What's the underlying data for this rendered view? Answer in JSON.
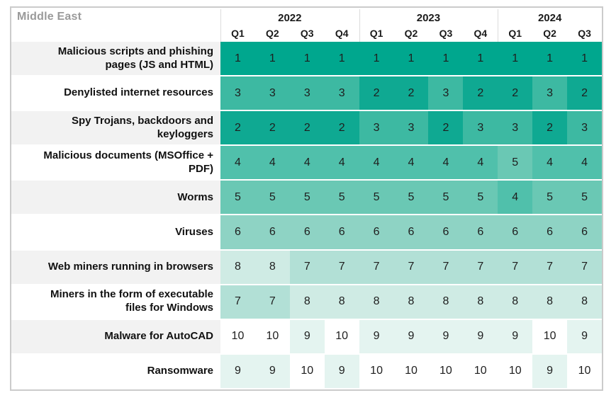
{
  "panel": {
    "title": "Middle East"
  },
  "header": {
    "year_groups": [
      {
        "label": "2022",
        "quarters": [
          "Q1",
          "Q2",
          "Q3",
          "Q4"
        ]
      },
      {
        "label": "2023",
        "quarters": [
          "Q1",
          "Q2",
          "Q3",
          "Q4"
        ]
      },
      {
        "label": "2024",
        "quarters": [
          "Q1",
          "Q2",
          "Q3"
        ]
      }
    ]
  },
  "rows": [
    {
      "label": "Malicious scripts and phishing pages (JS and HTML)",
      "values": [
        1,
        1,
        1,
        1,
        1,
        1,
        1,
        1,
        1,
        1,
        1
      ]
    },
    {
      "label": "Denylisted internet resources",
      "values": [
        3,
        3,
        3,
        3,
        2,
        2,
        3,
        2,
        2,
        3,
        2
      ]
    },
    {
      "label": "Spy Trojans, backdoors and keyloggers",
      "values": [
        2,
        2,
        2,
        2,
        3,
        3,
        2,
        3,
        3,
        2,
        3
      ]
    },
    {
      "label": "Malicious documents (MSOffice + PDF)",
      "values": [
        4,
        4,
        4,
        4,
        4,
        4,
        4,
        4,
        5,
        4,
        4
      ]
    },
    {
      "label": "Worms",
      "values": [
        5,
        5,
        5,
        5,
        5,
        5,
        5,
        5,
        4,
        5,
        5
      ]
    },
    {
      "label": "Viruses",
      "values": [
        6,
        6,
        6,
        6,
        6,
        6,
        6,
        6,
        6,
        6,
        6
      ]
    },
    {
      "label": "Web miners running in browsers",
      "values": [
        8,
        8,
        7,
        7,
        7,
        7,
        7,
        7,
        7,
        7,
        7
      ]
    },
    {
      "label": "Miners in the form of executable files for Windows",
      "values": [
        7,
        7,
        8,
        8,
        8,
        8,
        8,
        8,
        8,
        8,
        8
      ]
    },
    {
      "label": "Malware for AutoCAD",
      "values": [
        10,
        10,
        9,
        10,
        9,
        9,
        9,
        9,
        9,
        10,
        9
      ]
    },
    {
      "label": "Ransomware",
      "values": [
        9,
        9,
        10,
        9,
        10,
        10,
        10,
        10,
        10,
        9,
        10
      ]
    }
  ],
  "rank_colors": {
    "1": "#00a78e",
    "2": "#0fa992",
    "3": "#3db9a2",
    "4": "#50c0ab",
    "5": "#6ac8b4",
    "6": "#8ed3c4",
    "7": "#b2e0d6",
    "8": "#cfebe4",
    "9": "#e4f4f0",
    "10": "#ffffff"
  },
  "chart_data": {
    "type": "heatmap",
    "title": "Middle East",
    "value_meaning": "rank of threat category per quarter (1 = most widespread, 10 = least)",
    "columns": [
      "2022 Q1",
      "2022 Q2",
      "2022 Q3",
      "2022 Q4",
      "2023 Q1",
      "2023 Q2",
      "2023 Q3",
      "2023 Q4",
      "2024 Q1",
      "2024 Q2",
      "2024 Q3"
    ],
    "rows": [
      {
        "label": "Malicious scripts and phishing pages (JS and HTML)",
        "values": [
          1,
          1,
          1,
          1,
          1,
          1,
          1,
          1,
          1,
          1,
          1
        ]
      },
      {
        "label": "Denylisted internet resources",
        "values": [
          3,
          3,
          3,
          3,
          2,
          2,
          3,
          2,
          2,
          3,
          2
        ]
      },
      {
        "label": "Spy Trojans, backdoors and keyloggers",
        "values": [
          2,
          2,
          2,
          2,
          3,
          3,
          2,
          3,
          3,
          2,
          3
        ]
      },
      {
        "label": "Malicious documents (MSOffice + PDF)",
        "values": [
          4,
          4,
          4,
          4,
          4,
          4,
          4,
          4,
          5,
          4,
          4
        ]
      },
      {
        "label": "Worms",
        "values": [
          5,
          5,
          5,
          5,
          5,
          5,
          5,
          5,
          4,
          5,
          5
        ]
      },
      {
        "label": "Viruses",
        "values": [
          6,
          6,
          6,
          6,
          6,
          6,
          6,
          6,
          6,
          6,
          6
        ]
      },
      {
        "label": "Web miners running in browsers",
        "values": [
          8,
          8,
          7,
          7,
          7,
          7,
          7,
          7,
          7,
          7,
          7
        ]
      },
      {
        "label": "Miners in the form of executable files for Windows",
        "values": [
          7,
          7,
          8,
          8,
          8,
          8,
          8,
          8,
          8,
          8,
          8
        ]
      },
      {
        "label": "Malware for AutoCAD",
        "values": [
          10,
          10,
          9,
          10,
          9,
          9,
          9,
          9,
          9,
          10,
          9
        ]
      },
      {
        "label": "Ransomware",
        "values": [
          9,
          9,
          10,
          9,
          10,
          10,
          10,
          10,
          10,
          9,
          10
        ]
      }
    ],
    "color_scale": {
      "min_rank": 1,
      "max_rank": 10,
      "min_color": "#00a78e",
      "max_color": "#ffffff"
    },
    "legend": "none",
    "grid": "white 2px gaps between heatmap rows, alternating gray/white row-label backgrounds"
  }
}
